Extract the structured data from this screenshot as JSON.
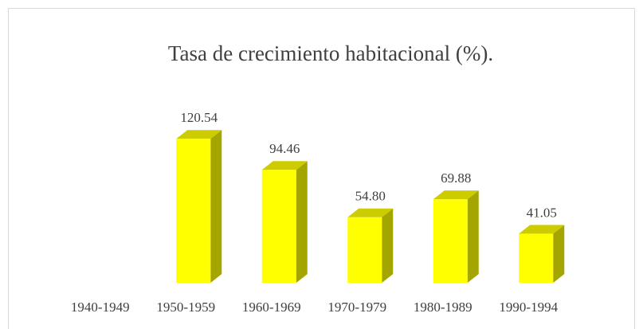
{
  "chart_data": {
    "type": "bar3d",
    "title": "Tasa de crecimiento habitacional (%).",
    "categories": [
      "1940-1949",
      "1950-1959",
      "1960-1969",
      "1970-1979",
      "1980-1989",
      "1990-1994"
    ],
    "values": [
      null,
      120.54,
      94.46,
      54.8,
      69.88,
      41.05
    ],
    "value_labels": [
      null,
      "120.54",
      "94.46",
      "54.80",
      "69.88",
      "41.05"
    ],
    "colors": {
      "front": "#ffff00",
      "top": "#cccc00",
      "side": "#a5a500"
    },
    "ylim": [
      0,
      140
    ]
  }
}
